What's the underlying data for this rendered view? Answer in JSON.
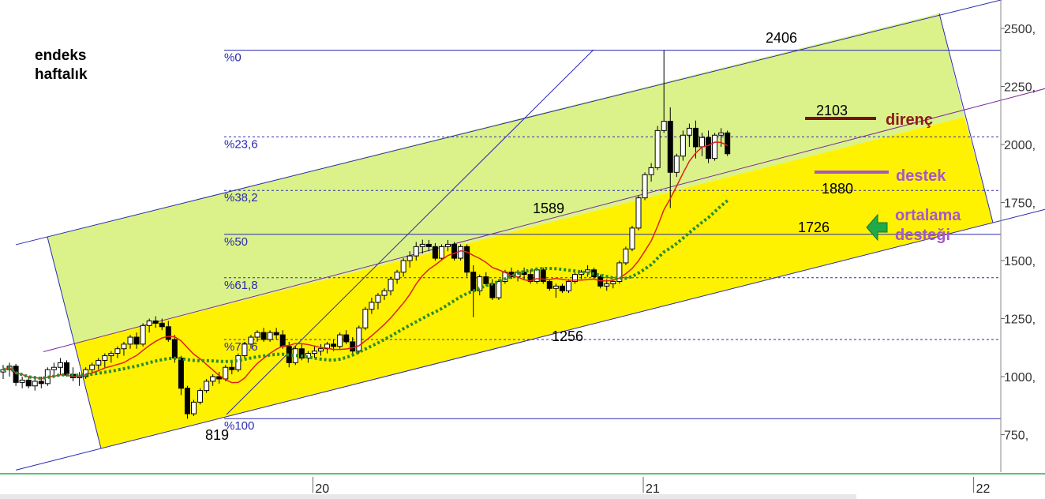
{
  "chart_data": {
    "type": "candlestick",
    "title": "endeks\nhaftalık",
    "title_lines": [
      "endeks",
      "haftalık"
    ],
    "y_ticks": [
      {
        "value": 750,
        "label": "750,"
      },
      {
        "value": 1000,
        "label": "1000,"
      },
      {
        "value": 1250,
        "label": "1250,"
      },
      {
        "value": 1500,
        "label": "1500,"
      },
      {
        "value": 1750,
        "label": "1750,"
      },
      {
        "value": 2000,
        "label": "2000,"
      },
      {
        "value": 2250,
        "label": "2250,"
      },
      {
        "value": 2500,
        "label": "2500,"
      }
    ],
    "ylim": [
      580,
      2600
    ],
    "x_ticks": [
      {
        "label": "20",
        "week": 48
      },
      {
        "label": "21",
        "week": 100
      },
      {
        "label": "22",
        "week": 152
      }
    ],
    "fib_levels": [
      {
        "label": "%0",
        "value": 2406
      },
      {
        "label": "%23,6",
        "value": 2033
      },
      {
        "label": "%38,2",
        "value": 1802
      },
      {
        "label": "%50",
        "value": 1613
      },
      {
        "label": "%61,8",
        "value": 1426
      },
      {
        "label": "%78.6",
        "value": 1160
      },
      {
        "label": "%100",
        "value": 819
      }
    ],
    "price_labels": [
      {
        "text": "2406",
        "week": 138,
        "value": 2406
      },
      {
        "text": "2103",
        "week": 142,
        "value": 2103
      },
      {
        "text": "1880",
        "week": 142,
        "value": 1880
      },
      {
        "text": "1726",
        "week": 138,
        "value": 1726
      },
      {
        "text": "1589",
        "week": 87,
        "value": 1589
      },
      {
        "text": "1256",
        "week": 90,
        "value": 1256
      },
      {
        "text": "819",
        "week": 34,
        "value": 819
      }
    ],
    "annotations": [
      {
        "text": "direnç",
        "color": "#8b1a1a",
        "level": 2103
      },
      {
        "text": "destek",
        "color": "#a855c8",
        "level": 1880
      },
      {
        "text": "ortalama",
        "color": "#a855c8"
      },
      {
        "text": "desteği",
        "color": "#a855c8"
      }
    ],
    "channel": {
      "lower_start": [
        6,
        680
      ],
      "lower_end": [
        168,
        1640
      ],
      "width": 560
    },
    "series": [
      {
        "name": "",
        "type": "candlestick",
        "color_up": "#ffffff",
        "color_down": "#000000",
        "start_week": 0,
        "ohlc": [
          [
            1020,
            1050,
            990,
            1030
          ],
          [
            1030,
            1060,
            1000,
            1045
          ],
          [
            1045,
            1055,
            960,
            975
          ],
          [
            975,
            1000,
            950,
            985
          ],
          [
            985,
            1000,
            950,
            960
          ],
          [
            960,
            990,
            940,
            980
          ],
          [
            980,
            1000,
            950,
            970
          ],
          [
            970,
            1040,
            960,
            1030
          ],
          [
            1030,
            1060,
            1000,
            1040
          ],
          [
            1040,
            1080,
            1010,
            1060
          ],
          [
            1060,
            1070,
            1000,
            1010
          ],
          [
            1010,
            1040,
            980,
            995
          ],
          [
            995,
            1020,
            960,
            1000
          ],
          [
            1000,
            1040,
            990,
            1030
          ],
          [
            1030,
            1060,
            1010,
            1050
          ],
          [
            1050,
            1080,
            1030,
            1070
          ],
          [
            1070,
            1100,
            1040,
            1090
          ],
          [
            1090,
            1110,
            1060,
            1100
          ],
          [
            1100,
            1130,
            1080,
            1120
          ],
          [
            1120,
            1150,
            1090,
            1140
          ],
          [
            1140,
            1180,
            1120,
            1170
          ],
          [
            1170,
            1190,
            1120,
            1140
          ],
          [
            1140,
            1230,
            1130,
            1220
          ],
          [
            1220,
            1250,
            1190,
            1240
          ],
          [
            1240,
            1260,
            1210,
            1230
          ],
          [
            1230,
            1250,
            1200,
            1215
          ],
          [
            1215,
            1240,
            1150,
            1160
          ],
          [
            1160,
            1180,
            1060,
            1080
          ],
          [
            1080,
            1090,
            920,
            950
          ],
          [
            950,
            960,
            819,
            840
          ],
          [
            840,
            900,
            830,
            890
          ],
          [
            890,
            950,
            880,
            940
          ],
          [
            940,
            990,
            930,
            980
          ],
          [
            980,
            1010,
            960,
            1000
          ],
          [
            1000,
            1020,
            970,
            990
          ],
          [
            990,
            1050,
            980,
            1040
          ],
          [
            1040,
            1060,
            1010,
            1030
          ],
          [
            1030,
            1100,
            1020,
            1090
          ],
          [
            1090,
            1150,
            1080,
            1140
          ],
          [
            1140,
            1180,
            1120,
            1170
          ],
          [
            1170,
            1200,
            1150,
            1190
          ],
          [
            1190,
            1210,
            1150,
            1160
          ],
          [
            1160,
            1200,
            1150,
            1190
          ],
          [
            1190,
            1210,
            1160,
            1180
          ],
          [
            1180,
            1200,
            1120,
            1130
          ],
          [
            1130,
            1150,
            1040,
            1060
          ],
          [
            1060,
            1130,
            1050,
            1120
          ],
          [
            1120,
            1140,
            1070,
            1080
          ],
          [
            1080,
            1110,
            1060,
            1100
          ],
          [
            1100,
            1130,
            1080,
            1110
          ],
          [
            1110,
            1140,
            1090,
            1120
          ],
          [
            1120,
            1150,
            1100,
            1140
          ],
          [
            1140,
            1160,
            1110,
            1130
          ],
          [
            1130,
            1190,
            1120,
            1180
          ],
          [
            1180,
            1200,
            1140,
            1150
          ],
          [
            1150,
            1170,
            1100,
            1110
          ],
          [
            1110,
            1220,
            1100,
            1210
          ],
          [
            1210,
            1300,
            1200,
            1290
          ],
          [
            1290,
            1340,
            1270,
            1320
          ],
          [
            1320,
            1360,
            1290,
            1350
          ],
          [
            1350,
            1380,
            1330,
            1370
          ],
          [
            1370,
            1430,
            1350,
            1420
          ],
          [
            1420,
            1460,
            1400,
            1450
          ],
          [
            1450,
            1510,
            1430,
            1500
          ],
          [
            1500,
            1540,
            1470,
            1520
          ],
          [
            1520,
            1580,
            1500,
            1560
          ],
          [
            1560,
            1590,
            1530,
            1570
          ],
          [
            1570,
            1589,
            1540,
            1560
          ],
          [
            1560,
            1575,
            1500,
            1510
          ],
          [
            1510,
            1570,
            1500,
            1560
          ],
          [
            1560,
            1589,
            1540,
            1570
          ],
          [
            1570,
            1580,
            1500,
            1510
          ],
          [
            1510,
            1570,
            1500,
            1560
          ],
          [
            1560,
            1570,
            1430,
            1450
          ],
          [
            1450,
            1480,
            1256,
            1370
          ],
          [
            1370,
            1440,
            1350,
            1430
          ],
          [
            1430,
            1450,
            1390,
            1400
          ],
          [
            1400,
            1420,
            1330,
            1340
          ],
          [
            1340,
            1420,
            1330,
            1410
          ],
          [
            1410,
            1460,
            1400,
            1450
          ],
          [
            1450,
            1470,
            1420,
            1430
          ],
          [
            1430,
            1460,
            1410,
            1450
          ],
          [
            1450,
            1470,
            1420,
            1440
          ],
          [
            1440,
            1460,
            1400,
            1410
          ],
          [
            1410,
            1470,
            1400,
            1460
          ],
          [
            1460,
            1470,
            1400,
            1410
          ],
          [
            1410,
            1420,
            1370,
            1380
          ],
          [
            1380,
            1400,
            1340,
            1390
          ],
          [
            1390,
            1400,
            1360,
            1370
          ],
          [
            1370,
            1420,
            1360,
            1410
          ],
          [
            1410,
            1450,
            1400,
            1440
          ],
          [
            1440,
            1460,
            1420,
            1450
          ],
          [
            1450,
            1480,
            1430,
            1460
          ],
          [
            1460,
            1470,
            1420,
            1430
          ],
          [
            1430,
            1440,
            1380,
            1390
          ],
          [
            1390,
            1420,
            1370,
            1400
          ],
          [
            1400,
            1420,
            1380,
            1410
          ],
          [
            1410,
            1500,
            1400,
            1490
          ],
          [
            1490,
            1560,
            1480,
            1550
          ],
          [
            1550,
            1650,
            1540,
            1640
          ],
          [
            1640,
            1780,
            1630,
            1770
          ],
          [
            1770,
            1880,
            1760,
            1870
          ],
          [
            1870,
            1920,
            1840,
            1900
          ],
          [
            1900,
            2080,
            1890,
            2060
          ],
          [
            2060,
            2406,
            2050,
            2100
          ],
          [
            2100,
            2160,
            1726,
            1880
          ],
          [
            1880,
            1960,
            1860,
            1950
          ],
          [
            1950,
            2060,
            1930,
            2040
          ],
          [
            2040,
            2090,
            1990,
            2070
          ],
          [
            2070,
            2103,
            1940,
            1990
          ],
          [
            1990,
            2050,
            1950,
            2030
          ],
          [
            2030,
            2060,
            1920,
            1940
          ],
          [
            1940,
            2050,
            1930,
            2040
          ],
          [
            2040,
            2070,
            1990,
            2050
          ],
          [
            2050,
            2060,
            1950,
            1960
          ]
        ]
      },
      {
        "name": "",
        "type": "line",
        "color": "#e0201b",
        "period": 10
      },
      {
        "name": "",
        "type": "line",
        "color": "#2e8b2e",
        "period": 26,
        "style": "dotted"
      }
    ]
  }
}
